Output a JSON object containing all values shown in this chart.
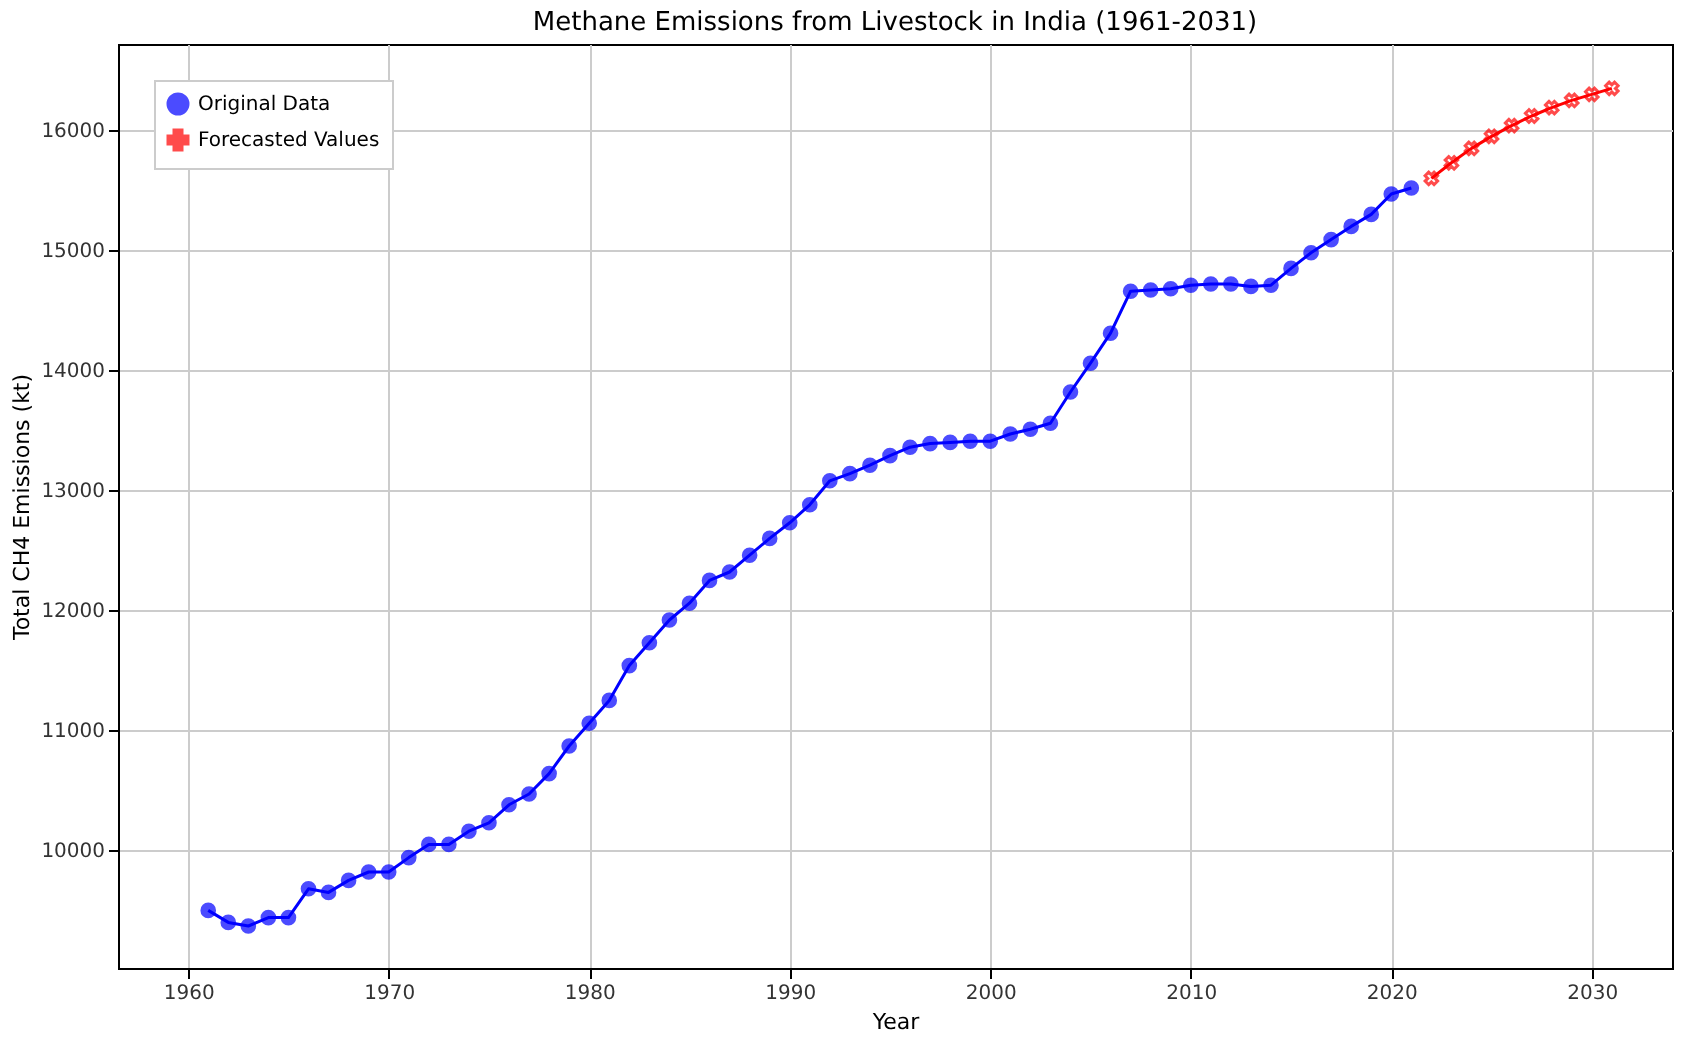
{
  "chart_data": {
    "type": "line",
    "title": "Methane Emissions from Livestock in India (1961-2031)",
    "xlabel": "Year",
    "ylabel": "Total CH4 Emissions (kt)",
    "xlim": [
      1956.5,
      2034
    ],
    "xticks": [
      1960,
      1970,
      1980,
      1990,
      2000,
      2010,
      2020,
      2030
    ],
    "ylim": [
      9020,
      16720
    ],
    "yticks": [
      10000,
      11000,
      12000,
      13000,
      14000,
      15000,
      16000
    ],
    "grid": true,
    "legend": "top left",
    "series": [
      {
        "name": "Original Data",
        "color": "#0000ff",
        "marker": "circle",
        "x": [
          1961,
          1962,
          1963,
          1964,
          1965,
          1966,
          1967,
          1968,
          1969,
          1970,
          1971,
          1972,
          1973,
          1974,
          1975,
          1976,
          1977,
          1978,
          1979,
          1980,
          1981,
          1982,
          1983,
          1984,
          1985,
          1986,
          1987,
          1988,
          1989,
          1990,
          1991,
          1992,
          1993,
          1994,
          1995,
          1996,
          1997,
          1998,
          1999,
          2000,
          2001,
          2002,
          2003,
          2004,
          2005,
          2006,
          2007,
          2008,
          2009,
          2010,
          2011,
          2012,
          2013,
          2014,
          2015,
          2016,
          2017,
          2018,
          2019,
          2020,
          2021
        ],
        "values": [
          9500,
          9400,
          9370,
          9440,
          9440,
          9680,
          9650,
          9750,
          9820,
          9820,
          9940,
          10050,
          10050,
          10160,
          10230,
          10380,
          10470,
          10640,
          10870,
          11060,
          11250,
          11540,
          11730,
          11920,
          12060,
          12250,
          12320,
          12460,
          12600,
          12730,
          12880,
          13080,
          13140,
          13210,
          13290,
          13360,
          13390,
          13400,
          13410,
          13410,
          13470,
          13510,
          13560,
          13820,
          14060,
          14310,
          14660,
          14670,
          14680,
          14710,
          14720,
          14720,
          14700,
          14710,
          14850,
          14980,
          15090,
          15200,
          15300,
          15470,
          15520
        ]
      },
      {
        "name": "Forecasted Values",
        "color": "#ff0000",
        "marker": "cross",
        "x": [
          2022,
          2023,
          2024,
          2025,
          2026,
          2027,
          2028,
          2029,
          2030,
          2031
        ],
        "values": [
          15600,
          15730,
          15850,
          15950,
          16040,
          16120,
          16190,
          16250,
          16300,
          16350
        ]
      }
    ]
  }
}
